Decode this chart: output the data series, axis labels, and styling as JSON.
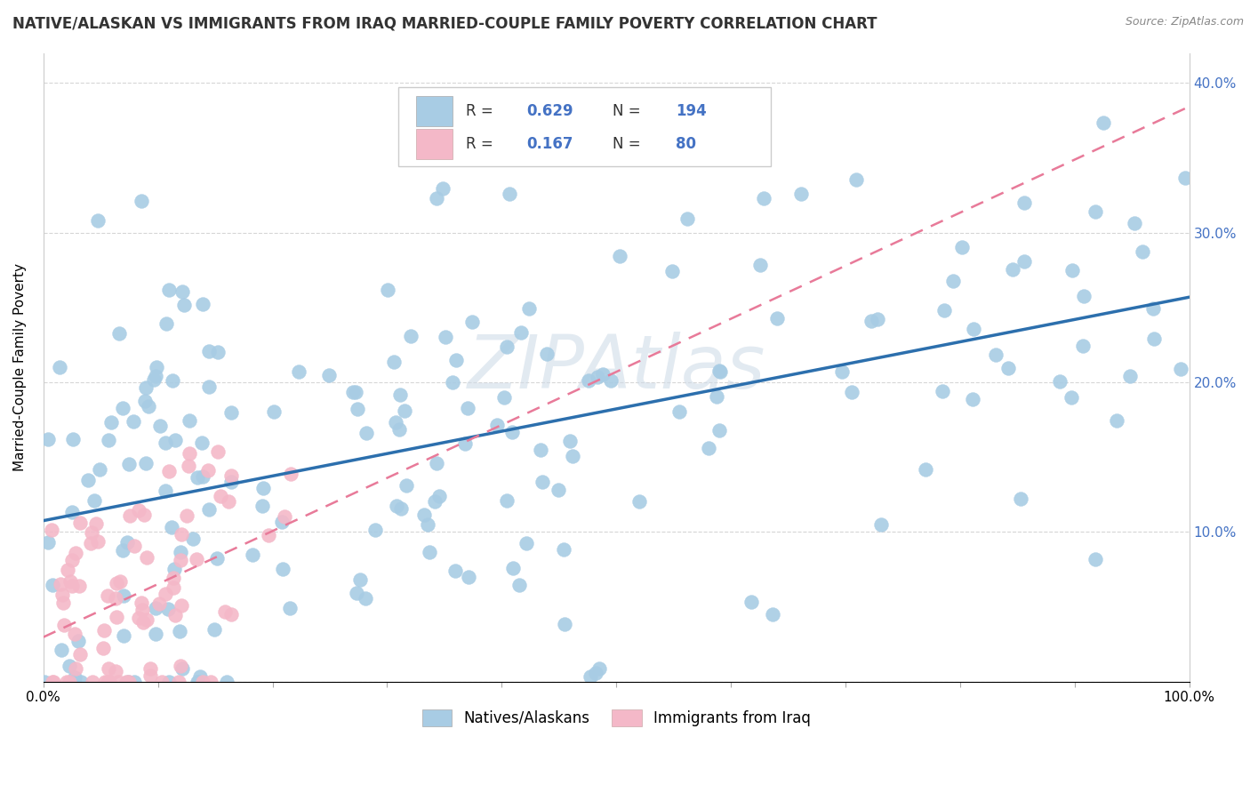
{
  "title": "NATIVE/ALASKAN VS IMMIGRANTS FROM IRAQ MARRIED-COUPLE FAMILY POVERTY CORRELATION CHART",
  "source": "Source: ZipAtlas.com",
  "ylabel": "Married-Couple Family Poverty",
  "xlim": [
    0,
    1
  ],
  "ylim": [
    0,
    0.42
  ],
  "xticks": [
    0.0,
    0.1,
    0.2,
    0.3,
    0.4,
    0.5,
    0.6,
    0.7,
    0.8,
    0.9,
    1.0
  ],
  "yticks": [
    0.0,
    0.1,
    0.2,
    0.3,
    0.4
  ],
  "blue_R": 0.629,
  "blue_N": 194,
  "pink_R": 0.167,
  "pink_N": 80,
  "blue_color": "#a8cce4",
  "pink_color": "#f4b8c8",
  "blue_line_color": "#2c6fad",
  "pink_line_color": "#e87a99",
  "right_axis_color": "#4472c4",
  "watermark": "ZIPAtlas",
  "background_color": "#ffffff",
  "grid_color": "#cccccc",
  "legend_label_blue": "Natives/Alaskans",
  "legend_label_pink": "Immigrants from Iraq",
  "title_color": "#333333",
  "source_color": "#888888"
}
